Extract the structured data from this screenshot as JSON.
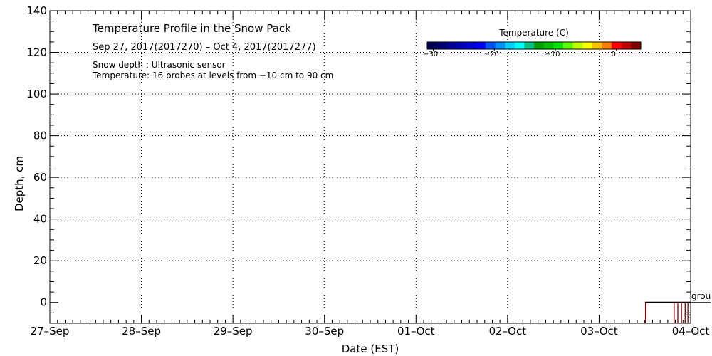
{
  "chart_data": {
    "type": "heatmap",
    "title": "Temperature Profile in the Snow Pack",
    "subtitle": "Sep 27, 2017(2017270) – Oct  4, 2017(2017277)",
    "notes": [
      "Snow depth : Ultrasonic sensor",
      "Temperature: 16 probes at levels from −10 cm to 90 cm"
    ],
    "xlabel": "Date (EST)",
    "ylabel": "Depth, cm",
    "x_tick_labels": [
      "27–Sep",
      "28–Sep",
      "29–Sep",
      "30–Sep",
      "01–Oct",
      "02–Oct",
      "03–Oct",
      "04–Oct"
    ],
    "xlim_days": [
      0,
      7
    ],
    "ylim": [
      -10,
      140
    ],
    "y_ticks": [
      0,
      20,
      40,
      60,
      80,
      100,
      120,
      140
    ],
    "grid": true,
    "ground_label": "grou",
    "colorbar": {
      "title": "Temperature (C)",
      "range": [
        -31,
        4
      ],
      "tick_values": [
        -30,
        -20,
        -10,
        0
      ],
      "tick_labels": [
        "−30",
        "−20",
        "−10",
        "0"
      ],
      "colors": [
        "#000050",
        "#000070",
        "#000090",
        "#0000b0",
        "#0000d0",
        "#0000f0",
        "#0050ff",
        "#0090ff",
        "#00d0ff",
        "#00ffff",
        "#00c080",
        "#00a000",
        "#00c000",
        "#00e000",
        "#60ff00",
        "#c0ff00",
        "#ffff00",
        "#ffc000",
        "#ff8000",
        "#ff0000",
        "#c00000",
        "#800000"
      ]
    },
    "snow_depth_line": {
      "x_days": [
        6.5,
        7.0
      ],
      "y": [
        0,
        0
      ]
    },
    "probe_markers_days": [
      6.51,
      6.82,
      6.86,
      6.9,
      6.94,
      6.97
    ],
    "ground_bar_color": "#7f0000",
    "color": "#000000"
  }
}
